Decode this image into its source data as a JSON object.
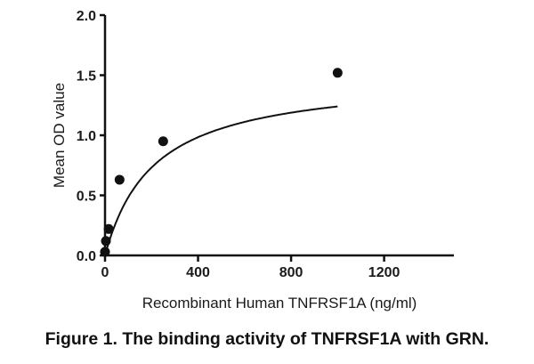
{
  "chart_data": {
    "type": "scatter",
    "title": "",
    "xlabel": "Recombinant Human TNFRSF1A (ng/ml)",
    "ylabel": "Mean OD value",
    "xlim": [
      0,
      1500
    ],
    "ylim": [
      0,
      2.0
    ],
    "x_ticks": [
      0,
      400,
      800,
      1200
    ],
    "x_tick_labels": [
      "0",
      "400",
      "800",
      "1200"
    ],
    "y_ticks": [
      0.0,
      0.5,
      1.0,
      1.5,
      2.0
    ],
    "y_tick_labels": [
      "0.0",
      "0.5",
      "1.0",
      "1.5",
      "2.0"
    ],
    "grid": false,
    "legend": null,
    "series": [
      {
        "name": "Mean OD",
        "marker": "filled-circle",
        "x": [
          0,
          3.9,
          15.6,
          62.5,
          250,
          1000
        ],
        "y": [
          0.03,
          0.12,
          0.22,
          0.63,
          0.95,
          1.52
        ]
      }
    ],
    "fit": {
      "name": "Fitted saturation curve",
      "model": "one-site binding",
      "bmax": 1.5,
      "kd": 210
    }
  },
  "caption": "Figure 1. The binding activity of TNFRSF1A with GRN."
}
